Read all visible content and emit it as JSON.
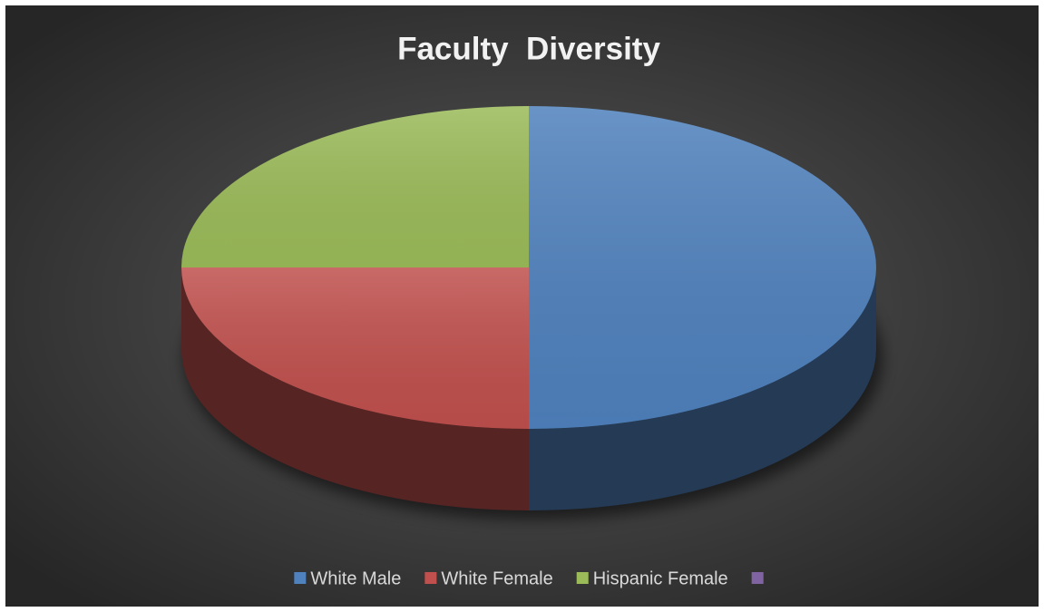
{
  "chart_data": {
    "type": "pie",
    "title": "Faculty  Diversity",
    "categories": [
      "White Male",
      "White Female",
      "Hispanic Female",
      null
    ],
    "values": [
      50,
      25,
      25,
      0
    ],
    "colors": [
      "#4f81bd",
      "#c0504d",
      "#9bbb59",
      "#8064a2"
    ],
    "legend": "bottom"
  }
}
